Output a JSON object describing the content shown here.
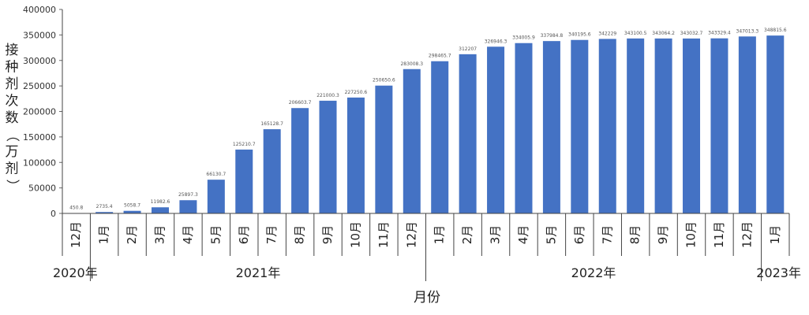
{
  "chart_data": {
    "type": "bar",
    "ylabel": "接种剂次数（万剂）",
    "xlabel": "月份",
    "ylim": [
      0,
      400000
    ],
    "yticks": [
      0,
      50000,
      100000,
      150000,
      200000,
      250000,
      300000,
      350000,
      400000
    ],
    "ytick_labels": [
      "0",
      "50000",
      "100000",
      "150000",
      "200000",
      "250000",
      "300000",
      "350000",
      "400000"
    ],
    "grid": false,
    "bar_color": "#4472C4",
    "categories": [
      "12月",
      "1月",
      "2月",
      "3月",
      "4月",
      "5月",
      "6月",
      "7月",
      "8月",
      "9月",
      "10月",
      "11月",
      "12月",
      "1月",
      "2月",
      "3月",
      "4月",
      "5月",
      "6月",
      "7月",
      "8月",
      "9月",
      "10月",
      "11月",
      "12月",
      "1月"
    ],
    "values": [
      450.8,
      2735.4,
      5058.7,
      11982.6,
      25897.3,
      66130.7,
      125210.7,
      165128.7,
      206603.7,
      221000.3,
      227250.6,
      250650.6,
      283008.3,
      298465.7,
      312207,
      326946.3,
      334005.9,
      337984.8,
      340195.6,
      342229,
      343100.5,
      343064.2,
      343032.7,
      343329.4,
      347013.3,
      348815.6
    ],
    "data_labels": [
      "450.8",
      "2735.4",
      "5058.7",
      "11982.6",
      "25897.3",
      "66130.7",
      "125210.7",
      "165128.7",
      "206603.7",
      "221000.3",
      "227250.6",
      "250650.6",
      "283008.3",
      "298465.7",
      "312207",
      "326946.3",
      "334005.9",
      "337984.8",
      "340195.6",
      "342229",
      "343100.5",
      "343064.2",
      "343032.7",
      "343329.4",
      "347013.3",
      "348815.6"
    ],
    "year_groups": [
      {
        "label": "2020年",
        "start": 0,
        "end": 0
      },
      {
        "label": "2021年",
        "start": 1,
        "end": 12
      },
      {
        "label": "2022年",
        "start": 13,
        "end": 24
      },
      {
        "label": "2023年",
        "start": 25,
        "end": 25
      }
    ]
  }
}
